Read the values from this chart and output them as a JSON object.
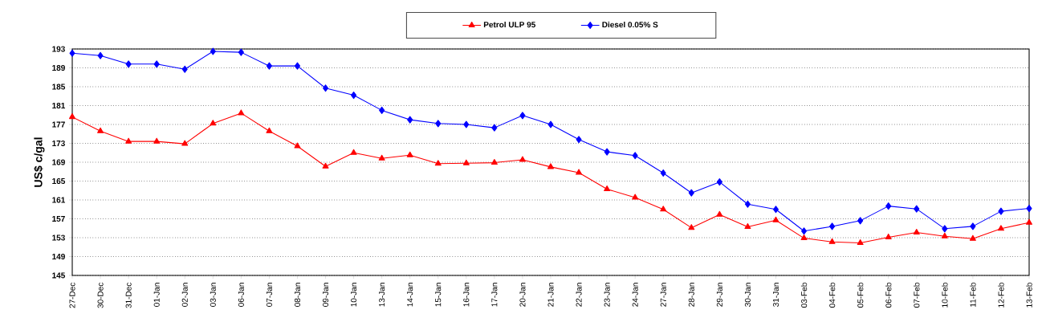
{
  "chart_data": {
    "type": "line",
    "ylabel": "US$ c/gal",
    "categories": [
      "27-Dec",
      "30-Dec",
      "31-Dec",
      "01-Jan",
      "02-Jan",
      "03-Jan",
      "06-Jan",
      "07-Jan",
      "08-Jan",
      "09-Jan",
      "10-Jan",
      "13-Jan",
      "14-Jan",
      "15-Jan",
      "16-Jan",
      "17-Jan",
      "20-Jan",
      "21-Jan",
      "22-Jan",
      "23-Jan",
      "24-Jan",
      "27-Jan",
      "28-Jan",
      "29-Jan",
      "30-Jan",
      "31-Jan",
      "03-Feb",
      "04-Feb",
      "05-Feb",
      "06-Feb",
      "07-Feb",
      "10-Feb",
      "11-Feb",
      "12-Feb",
      "13-Feb"
    ],
    "series": [
      {
        "name": "Petrol ULP 95",
        "color": "#ff0000",
        "marker": "triangle",
        "values": [
          178.6,
          175.6,
          173.4,
          173.4,
          172.9,
          177.2,
          179.4,
          175.6,
          172.4,
          168.1,
          171.0,
          169.8,
          170.5,
          168.7,
          168.8,
          168.9,
          169.5,
          168.0,
          166.8,
          163.3,
          161.5,
          159.0,
          155.1,
          157.9,
          155.3,
          156.7,
          152.9,
          152.1,
          151.9,
          153.1,
          154.1,
          153.3,
          152.8,
          154.9,
          156.2
        ]
      },
      {
        "name": "Diesel 0.05% S",
        "color": "#0000ff",
        "marker": "diamond",
        "values": [
          192.1,
          191.6,
          189.8,
          189.8,
          188.7,
          192.5,
          192.3,
          189.4,
          189.4,
          184.7,
          183.2,
          180.0,
          178.0,
          177.2,
          177.0,
          176.3,
          178.9,
          177.0,
          173.8,
          171.2,
          170.4,
          166.7,
          162.5,
          164.8,
          160.1,
          159.0,
          154.4,
          155.4,
          156.6,
          159.7,
          159.1,
          154.9,
          155.4,
          158.6,
          159.2
        ]
      }
    ],
    "ylim": [
      145,
      193
    ],
    "yticks": [
      145,
      149,
      153,
      157,
      161,
      165,
      169,
      173,
      177,
      181,
      185,
      189,
      193
    ],
    "grid": "y",
    "legend": "top",
    "line_style": "solid"
  }
}
